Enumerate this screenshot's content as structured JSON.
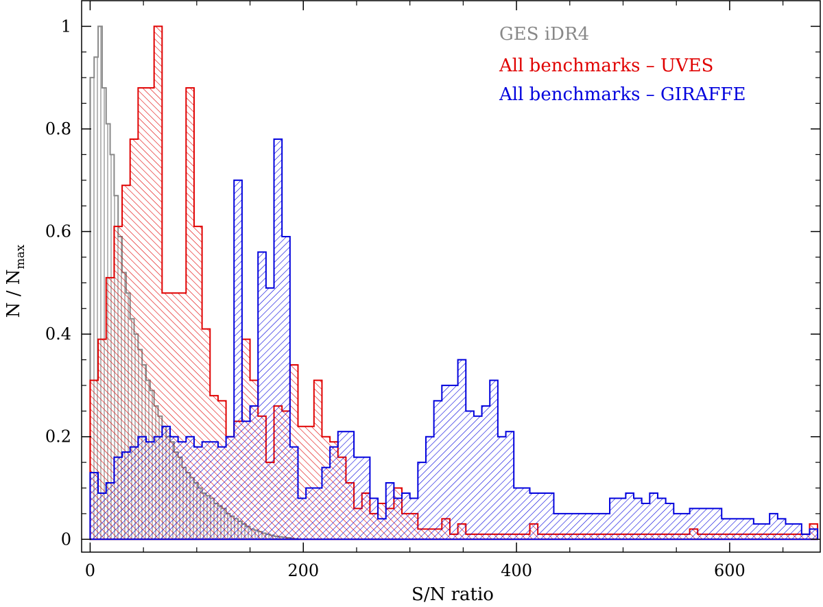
{
  "chart_data": {
    "type": "histogram",
    "xlabel": "S/N ratio",
    "ylabel": "N / N",
    "ylabel_subscript": "max",
    "xlim": [
      -8,
      685
    ],
    "ylim": [
      -0.025,
      1.05
    ],
    "x_ticks": [
      0,
      200,
      400,
      600
    ],
    "x_tick_labels": [
      "0",
      "200",
      "400",
      "600"
    ],
    "y_ticks": [
      0,
      0.2,
      0.4,
      0.6,
      0.8,
      1
    ],
    "y_tick_labels": [
      "0",
      "0.2",
      "0.4",
      "0.6",
      "0.8",
      "1"
    ],
    "bin_width": 7.5,
    "grid": false,
    "legend_position": "top-right",
    "series": [
      {
        "name": "GES iDR4",
        "color": "#888888",
        "hatch": "vertical",
        "bin_width": 3.75,
        "x_start": 0,
        "values": [
          0.9,
          0.94,
          1.0,
          0.88,
          0.81,
          0.75,
          0.67,
          0.59,
          0.52,
          0.48,
          0.43,
          0.4,
          0.37,
          0.34,
          0.31,
          0.29,
          0.26,
          0.24,
          0.22,
          0.2,
          0.19,
          0.17,
          0.16,
          0.14,
          0.13,
          0.12,
          0.11,
          0.1,
          0.09,
          0.085,
          0.08,
          0.07,
          0.065,
          0.06,
          0.05,
          0.045,
          0.04,
          0.035,
          0.03,
          0.025,
          0.02,
          0.018,
          0.015,
          0.012,
          0.01,
          0.008,
          0.006,
          0.005,
          0.004,
          0.003,
          0.002,
          0.001
        ]
      },
      {
        "name": "All benchmarks - UVES",
        "color": "#e00000",
        "hatch": "diagonal-up",
        "bin_width": 7.5,
        "x_start": 0,
        "values": [
          0.31,
          0.39,
          0.51,
          0.61,
          0.69,
          0.78,
          0.88,
          0.88,
          1.0,
          0.48,
          0.48,
          0.48,
          0.88,
          0.61,
          0.41,
          0.28,
          0.27,
          0.2,
          0.23,
          0.39,
          0.31,
          0.24,
          0.15,
          0.26,
          0.25,
          0.34,
          0.22,
          0.22,
          0.31,
          0.2,
          0.19,
          0.16,
          0.11,
          0.06,
          0.09,
          0.05,
          0.07,
          0.06,
          0.1,
          0.05,
          0.05,
          0.02,
          0.02,
          0.02,
          0.04,
          0.01,
          0.03,
          0.01,
          0.01,
          0.01,
          0.01,
          0.01,
          0.01,
          0.01,
          0.01,
          0.03,
          0.01,
          0.01,
          0.01,
          0.01,
          0.01,
          0.01,
          0.01,
          0.01,
          0.01,
          0.01,
          0.01,
          0.01,
          0.01,
          0.01,
          0.01,
          0.01,
          0.01,
          0.01,
          0.01,
          0.02,
          0.01,
          0.01,
          0.01,
          0.01,
          0.01,
          0.01,
          0.01,
          0.01,
          0.01,
          0.01,
          0.01,
          0.01,
          0.01,
          0.01,
          0.03
        ]
      },
      {
        "name": "All benchmarks - GIRAFFE",
        "color": "#0000dd",
        "hatch": "diagonal-down",
        "bin_width": 7.5,
        "x_start": 0,
        "values": [
          0.13,
          0.09,
          0.11,
          0.16,
          0.17,
          0.18,
          0.2,
          0.19,
          0.2,
          0.22,
          0.2,
          0.19,
          0.2,
          0.18,
          0.19,
          0.19,
          0.18,
          0.2,
          0.7,
          0.23,
          0.26,
          0.56,
          0.49,
          0.78,
          0.59,
          0.18,
          0.08,
          0.1,
          0.1,
          0.14,
          0.18,
          0.21,
          0.21,
          0.16,
          0.16,
          0.08,
          0.04,
          0.11,
          0.08,
          0.09,
          0.08,
          0.15,
          0.2,
          0.27,
          0.3,
          0.3,
          0.35,
          0.25,
          0.24,
          0.26,
          0.31,
          0.2,
          0.21,
          0.1,
          0.1,
          0.09,
          0.09,
          0.09,
          0.05,
          0.05,
          0.05,
          0.05,
          0.05,
          0.05,
          0.05,
          0.08,
          0.08,
          0.09,
          0.08,
          0.07,
          0.09,
          0.08,
          0.07,
          0.05,
          0.05,
          0.06,
          0.06,
          0.06,
          0.06,
          0.04,
          0.04,
          0.04,
          0.04,
          0.03,
          0.03,
          0.05,
          0.04,
          0.03,
          0.03,
          0.01,
          0.02
        ]
      }
    ],
    "legend": [
      {
        "label": "GES iDR4",
        "color": "#888888"
      },
      {
        "label": "All benchmarks – UVES",
        "color": "#e00000"
      },
      {
        "label": "All benchmarks – GIRAFFE",
        "color": "#0000dd"
      }
    ]
  }
}
